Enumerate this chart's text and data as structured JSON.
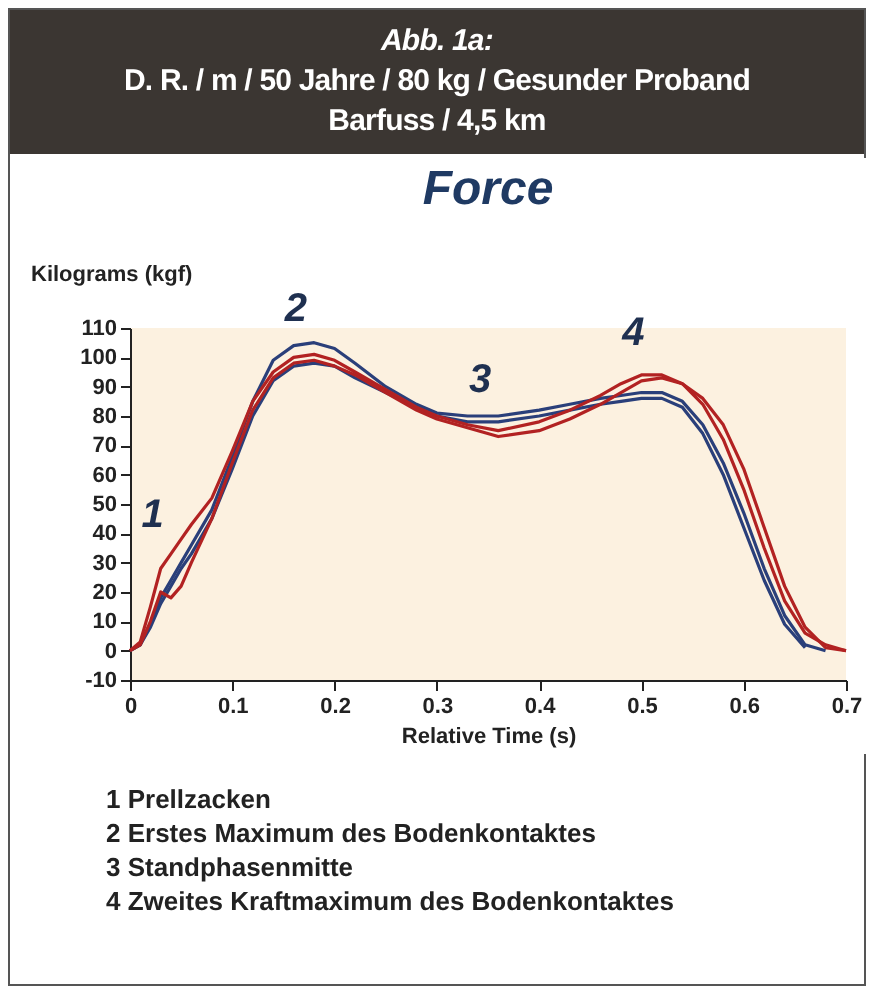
{
  "chart_data": {
    "type": "line",
    "title": "Force",
    "xlabel": "Relative Time (s)",
    "ylabel": "Kilograms (kgf)",
    "x": [
      0,
      0.01,
      0.02,
      0.03,
      0.04,
      0.05,
      0.06,
      0.08,
      0.1,
      0.12,
      0.14,
      0.16,
      0.18,
      0.2,
      0.22,
      0.25,
      0.28,
      0.3,
      0.33,
      0.36,
      0.4,
      0.43,
      0.46,
      0.48,
      0.5,
      0.52,
      0.54,
      0.56,
      0.58,
      0.6,
      0.62,
      0.64,
      0.66,
      0.68,
      0.7
    ],
    "series": [
      {
        "color": "#2a3f7a",
        "values": [
          0,
          2,
          8,
          16,
          22,
          28,
          33,
          45,
          62,
          80,
          92,
          97,
          98,
          97,
          93,
          88,
          83,
          80,
          78,
          78,
          80,
          82,
          84,
          85,
          86,
          86,
          83,
          74,
          60,
          42,
          24,
          9,
          1,
          null,
          null
        ]
      },
      {
        "color": "#2a3f7a",
        "values": [
          0,
          2,
          9,
          18,
          24,
          30,
          36,
          48,
          66,
          85,
          99,
          104,
          105,
          103,
          98,
          90,
          84,
          81,
          80,
          80,
          82,
          84,
          86,
          87,
          88,
          88,
          85,
          77,
          64,
          47,
          28,
          12,
          2,
          0,
          null
        ]
      },
      {
        "color": "#b22222",
        "values": [
          0,
          3,
          15,
          28,
          33,
          38,
          43,
          52,
          68,
          85,
          95,
          100,
          101,
          99,
          95,
          89,
          83,
          80,
          77,
          75,
          78,
          82,
          87,
          91,
          94,
          94,
          91,
          84,
          72,
          55,
          35,
          17,
          6,
          2,
          0
        ]
      },
      {
        "color": "#b22222",
        "values": [
          0,
          2,
          10,
          20,
          18,
          22,
          30,
          45,
          64,
          82,
          93,
          98,
          99,
          97,
          94,
          88,
          82,
          79,
          76,
          73,
          75,
          79,
          84,
          88,
          92,
          93,
          91,
          86,
          77,
          62,
          42,
          22,
          8,
          1,
          0
        ]
      }
    ],
    "xlim": [
      0,
      0.7
    ],
    "xticks": [
      0,
      0.1,
      0.2,
      0.3,
      0.4,
      0.5,
      0.6,
      0.7
    ],
    "ylim": [
      -10,
      110
    ],
    "yticks": [
      -10,
      0,
      10,
      20,
      30,
      40,
      50,
      60,
      70,
      80,
      90,
      100,
      110
    ],
    "grid": false,
    "legend": false,
    "annotations": [
      "Abb. 1a:",
      "D. R. / m / 50 Jahre / 80 kg / Gesunder Proband",
      "Barfuss / 4,5 km",
      "1  Prellzacken",
      "2  Erstes Maximum des Bodenkontaktes",
      "3  Standphasenmitte",
      "4  Zweites Kraftmaximum des Bodenkontaktes",
      {
        "text": "1",
        "x": 0.03,
        "y": 30
      },
      {
        "text": "2",
        "x": 0.17,
        "y": 100
      },
      {
        "text": "3",
        "x": 0.35,
        "y": 76
      },
      {
        "text": "4",
        "x": 0.5,
        "y": 92
      }
    ]
  }
}
